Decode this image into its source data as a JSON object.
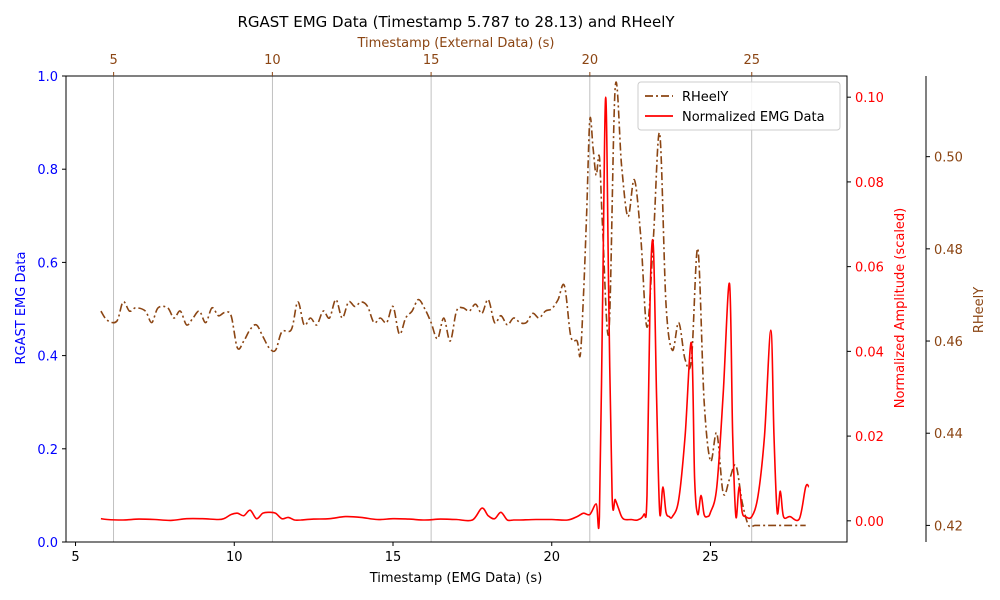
{
  "chart_data": {
    "type": "line",
    "title": "RGAST EMG Data (Timestamp 5.787 to 28.13) and RHeelY",
    "xlabel": "Timestamp (EMG Data) (s)",
    "x_top_label": "Timestamp (External Data) (s)",
    "ylabel_left": "RGAST EMG Data",
    "ylabel_right": "Normalized Amplitude (scaled)",
    "ylabel_far_right": "RHeelY",
    "xlim": [
      4.7,
      29.3
    ],
    "ylim_left": [
      0,
      1.0
    ],
    "ylim_right": [
      -0.005,
      0.105
    ],
    "ylim_far_right": [
      0.4164,
      0.5175
    ],
    "x_ticks": [
      "5",
      "10",
      "15",
      "20",
      "25"
    ],
    "y_left_ticks": [
      "0.0",
      "0.2",
      "0.4",
      "0.6",
      "0.8",
      "1.0"
    ],
    "y_right_ticks": [
      "0.00",
      "0.02",
      "0.04",
      "0.06",
      "0.08",
      "0.10"
    ],
    "y_far_right_ticks": [
      "0.42",
      "0.44",
      "0.46",
      "0.48",
      "0.50"
    ],
    "top_ticks": [
      {
        "label": "5",
        "x": 6.2
      },
      {
        "label": "10",
        "x": 11.2
      },
      {
        "label": "15",
        "x": 16.2
      },
      {
        "label": "20",
        "x": 21.2
      },
      {
        "label": "25",
        "x": 26.3
      }
    ],
    "grid": "vertical lines at top-axis ticks",
    "legend_position": "top-right",
    "colors": {
      "left": "#0000ff",
      "emg": "#ff0000",
      "heel": "#8b4513",
      "grid": "#b0b0b0"
    },
    "series": [
      {
        "name": "RHeelY",
        "style": "dash-dot",
        "axis": "far_right",
        "x": [
          5.8,
          6.0,
          6.3,
          6.5,
          6.7,
          6.9,
          7.2,
          7.4,
          7.6,
          7.9,
          8.1,
          8.3,
          8.5,
          8.7,
          8.9,
          9.1,
          9.3,
          9.5,
          9.7,
          9.9,
          10.1,
          10.3,
          10.5,
          10.7,
          10.9,
          11.1,
          11.3,
          11.5,
          11.8,
          12.0,
          12.2,
          12.4,
          12.6,
          12.8,
          13.0,
          13.2,
          13.4,
          13.6,
          13.8,
          14.0,
          14.2,
          14.4,
          14.6,
          14.8,
          15.0,
          15.2,
          15.4,
          15.6,
          15.8,
          16.0,
          16.2,
          16.4,
          16.6,
          16.8,
          17.0,
          17.2,
          17.4,
          17.6,
          17.8,
          18.0,
          18.2,
          18.4,
          18.6,
          18.8,
          19.0,
          19.2,
          19.4,
          19.6,
          19.8,
          20.0,
          20.2,
          20.4,
          20.6,
          20.8,
          20.9,
          21.0,
          21.1,
          21.2,
          21.3,
          21.4,
          21.5,
          21.6,
          21.8,
          22.0,
          22.2,
          22.4,
          22.6,
          22.8,
          23.0,
          23.2,
          23.4,
          23.6,
          23.8,
          24.0,
          24.2,
          24.4,
          24.6,
          24.8,
          25.0,
          25.2,
          25.4,
          25.6,
          25.8,
          26.0,
          26.2,
          26.4,
          26.6,
          27.0,
          27.5,
          28.0
        ],
        "y": [
          0.4665,
          0.4645,
          0.4643,
          0.4685,
          0.4665,
          0.4672,
          0.4665,
          0.464,
          0.4672,
          0.4672,
          0.465,
          0.4665,
          0.4635,
          0.465,
          0.4665,
          0.464,
          0.4672,
          0.4655,
          0.4662,
          0.4655,
          0.4585,
          0.46,
          0.4625,
          0.4635,
          0.461,
          0.4585,
          0.458,
          0.462,
          0.4625,
          0.4685,
          0.4635,
          0.465,
          0.4635,
          0.4665,
          0.465,
          0.469,
          0.465,
          0.4685,
          0.4675,
          0.4685,
          0.4675,
          0.464,
          0.465,
          0.464,
          0.4675,
          0.4615,
          0.465,
          0.4665,
          0.469,
          0.467,
          0.464,
          0.4605,
          0.465,
          0.46,
          0.4665,
          0.4672,
          0.4665,
          0.468,
          0.466,
          0.469,
          0.464,
          0.4655,
          0.4635,
          0.465,
          0.464,
          0.464,
          0.466,
          0.465,
          0.4665,
          0.467,
          0.469,
          0.472,
          0.461,
          0.46,
          0.457,
          0.47,
          0.488,
          0.508,
          0.502,
          0.496,
          0.5,
          0.485,
          0.462,
          0.515,
          0.498,
          0.487,
          0.495,
          0.483,
          0.463,
          0.482,
          0.505,
          0.468,
          0.458,
          0.464,
          0.456,
          0.456,
          0.48,
          0.447,
          0.434,
          0.44,
          0.427,
          0.43,
          0.433,
          0.425,
          0.42,
          0.42,
          0.42,
          0.42,
          0.42,
          0.42
        ]
      },
      {
        "name": "Normalized EMG Data",
        "style": "solid",
        "axis": "right",
        "x": [
          5.8,
          6.0,
          6.5,
          7.0,
          7.5,
          8.0,
          8.5,
          9.0,
          9.5,
          9.7,
          9.9,
          10.1,
          10.3,
          10.5,
          10.7,
          10.9,
          11.1,
          11.3,
          11.5,
          11.7,
          11.9,
          12.1,
          12.5,
          13.0,
          13.5,
          14.0,
          14.5,
          15.0,
          15.5,
          16.0,
          16.5,
          17.0,
          17.5,
          17.8,
          18.0,
          18.2,
          18.4,
          18.6,
          18.8,
          19.0,
          19.5,
          20.0,
          20.5,
          20.8,
          21.0,
          21.2,
          21.4,
          21.5,
          21.6,
          21.7,
          21.8,
          21.9,
          22.0,
          22.1,
          22.2,
          22.3,
          22.5,
          22.7,
          22.9,
          23.0,
          23.1,
          23.2,
          23.3,
          23.4,
          23.5,
          23.6,
          23.7,
          23.8,
          24.0,
          24.2,
          24.4,
          24.5,
          24.6,
          24.7,
          24.8,
          24.9,
          25.0,
          25.2,
          25.4,
          25.6,
          25.7,
          25.8,
          25.9,
          26.0,
          26.1,
          26.3,
          26.5,
          26.7,
          26.9,
          27.0,
          27.1,
          27.2,
          27.3,
          27.5,
          27.8,
          28.0,
          28.1
        ],
        "y": [
          0.0005,
          0.0003,
          0.0002,
          0.0004,
          0.0003,
          0.0001,
          0.0005,
          0.0005,
          0.0003,
          0.0006,
          0.0015,
          0.0018,
          0.0012,
          0.0025,
          0.0005,
          0.0018,
          0.002,
          0.0018,
          0.0005,
          0.0008,
          0.0002,
          0.0002,
          0.0004,
          0.0005,
          0.001,
          0.0008,
          0.0003,
          0.0005,
          0.0004,
          0.0002,
          0.0004,
          0.0003,
          0.0002,
          0.003,
          0.0012,
          0.0005,
          0.002,
          0.0002,
          0.0002,
          0.0002,
          0.0003,
          0.0003,
          0.0002,
          0.001,
          0.0018,
          0.0015,
          0.004,
          0.001,
          0.05,
          0.1,
          0.05,
          0.006,
          0.005,
          0.003,
          0.001,
          0.0003,
          0.0003,
          0.0002,
          0.0015,
          0.006,
          0.054,
          0.065,
          0.03,
          0.002,
          0.008,
          0.002,
          0.001,
          0.001,
          0.005,
          0.02,
          0.042,
          0.01,
          0.0015,
          0.006,
          0.0015,
          0.001,
          0.002,
          0.008,
          0.03,
          0.056,
          0.02,
          0.001,
          0.008,
          0.002,
          0.001,
          0.001,
          0.006,
          0.02,
          0.045,
          0.02,
          0.002,
          0.007,
          0.001,
          0.001,
          0.0005,
          0.008,
          0.008
        ]
      }
    ]
  }
}
